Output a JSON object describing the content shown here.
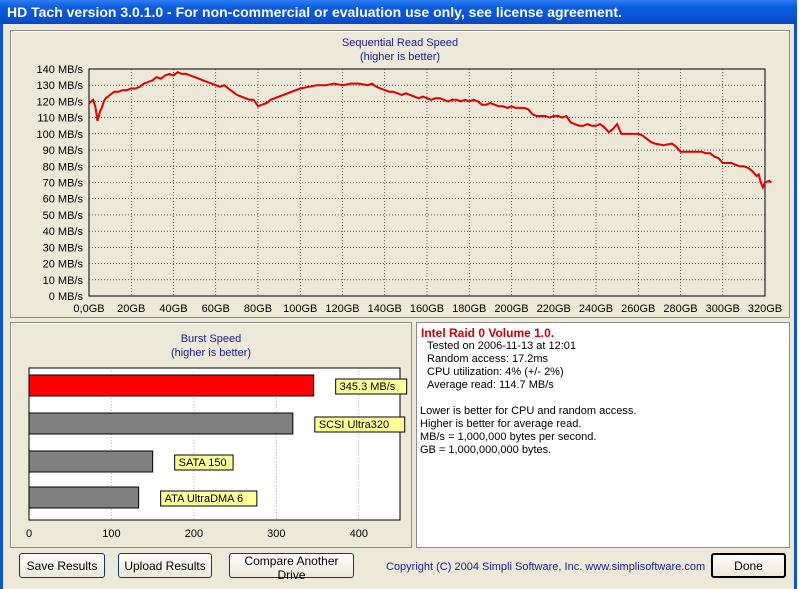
{
  "window": {
    "title": "HD Tach version 3.0.1.0  - For non-commercial or evaluation use only, see license agreement."
  },
  "chart_data": [
    {
      "type": "line",
      "title": "Sequential Read Speed",
      "subtitle": "(higher is better)",
      "x_ticks": [
        "0,0GB",
        "20GB",
        "40GB",
        "60GB",
        "80GB",
        "100GB",
        "120GB",
        "140GB",
        "160GB",
        "180GB",
        "200GB",
        "220GB",
        "240GB",
        "260GB",
        "280GB",
        "300GB",
        "320GB"
      ],
      "y_ticks": [
        "0 MB/s",
        "10 MB/s",
        "20 MB/s",
        "30 MB/s",
        "40 MB/s",
        "50 MB/s",
        "60 MB/s",
        "70 MB/s",
        "80 MB/s",
        "90 MB/s",
        "100 MB/s",
        "110 MB/s",
        "120 MB/s",
        "130 MB/s",
        "140 MB/s"
      ],
      "xlim": [
        0,
        320
      ],
      "ylim": [
        0,
        140
      ],
      "grid": true,
      "series": [
        {
          "color": "#e00000",
          "points": [
            [
              0,
              119
            ],
            [
              2,
              121
            ],
            [
              3,
              117
            ],
            [
              4,
              108
            ],
            [
              5,
              113
            ],
            [
              6,
              116
            ],
            [
              7,
              120
            ],
            [
              8,
              122
            ],
            [
              10,
              124
            ],
            [
              12,
              126
            ],
            [
              14,
              126
            ],
            [
              16,
              127
            ],
            [
              18,
              127
            ],
            [
              20,
              128
            ],
            [
              22,
              128
            ],
            [
              24,
              129
            ],
            [
              26,
              131
            ],
            [
              28,
              132
            ],
            [
              30,
              133
            ],
            [
              32,
              135
            ],
            [
              34,
              134
            ],
            [
              36,
              136
            ],
            [
              38,
              137
            ],
            [
              40,
              136
            ],
            [
              42,
              138
            ],
            [
              44,
              137
            ],
            [
              46,
              137
            ],
            [
              48,
              136
            ],
            [
              50,
              135
            ],
            [
              52,
              134
            ],
            [
              54,
              133
            ],
            [
              56,
              132
            ],
            [
              58,
              131
            ],
            [
              60,
              130
            ],
            [
              62,
              129
            ],
            [
              64,
              130
            ],
            [
              66,
              128
            ],
            [
              68,
              126
            ],
            [
              70,
              124
            ],
            [
              72,
              123
            ],
            [
              74,
              122
            ],
            [
              76,
              121
            ],
            [
              78,
              121
            ],
            [
              80,
              117
            ],
            [
              82,
              118
            ],
            [
              84,
              119
            ],
            [
              86,
              121
            ],
            [
              88,
              122
            ],
            [
              90,
              123
            ],
            [
              92,
              124
            ],
            [
              94,
              125
            ],
            [
              96,
              126
            ],
            [
              98,
              127
            ],
            [
              100,
              128
            ],
            [
              104,
              129
            ],
            [
              108,
              130
            ],
            [
              112,
              130
            ],
            [
              116,
              131
            ],
            [
              120,
              130
            ],
            [
              124,
              131
            ],
            [
              128,
              131
            ],
            [
              132,
              130
            ],
            [
              134,
              131
            ],
            [
              136,
              129
            ],
            [
              138,
              128
            ],
            [
              140,
              127
            ],
            [
              142,
              126
            ],
            [
              144,
              126
            ],
            [
              146,
              125
            ],
            [
              148,
              124
            ],
            [
              150,
              125
            ],
            [
              152,
              124
            ],
            [
              154,
              123
            ],
            [
              156,
              122
            ],
            [
              158,
              123
            ],
            [
              160,
              122
            ],
            [
              162,
              121
            ],
            [
              164,
              122
            ],
            [
              166,
              122
            ],
            [
              168,
              121
            ],
            [
              170,
              120
            ],
            [
              172,
              121
            ],
            [
              174,
              121
            ],
            [
              176,
              120
            ],
            [
              178,
              121
            ],
            [
              180,
              120
            ],
            [
              182,
              121
            ],
            [
              184,
              120
            ],
            [
              186,
              118
            ],
            [
              188,
              118
            ],
            [
              190,
              119
            ],
            [
              192,
              118
            ],
            [
              194,
              117
            ],
            [
              196,
              117
            ],
            [
              198,
              116
            ],
            [
              200,
              117
            ],
            [
              202,
              116
            ],
            [
              204,
              116
            ],
            [
              206,
              116
            ],
            [
              208,
              115
            ],
            [
              210,
              112
            ],
            [
              212,
              111
            ],
            [
              214,
              111
            ],
            [
              216,
              111
            ],
            [
              218,
              110
            ],
            [
              220,
              111
            ],
            [
              222,
              111
            ],
            [
              224,
              110
            ],
            [
              226,
              111
            ],
            [
              228,
              107
            ],
            [
              230,
              106
            ],
            [
              232,
              105
            ],
            [
              234,
              105
            ],
            [
              236,
              106
            ],
            [
              238,
              105
            ],
            [
              240,
              105
            ],
            [
              242,
              106
            ],
            [
              244,
              104
            ],
            [
              246,
              101
            ],
            [
              248,
              103
            ],
            [
              250,
              106
            ],
            [
              251,
              103
            ],
            [
              252,
              100
            ],
            [
              256,
              100
            ],
            [
              260,
              100
            ],
            [
              262,
              99
            ],
            [
              264,
              97
            ],
            [
              266,
              95
            ],
            [
              268,
              94
            ],
            [
              272,
              93
            ],
            [
              276,
              94
            ],
            [
              278,
              92
            ],
            [
              280,
              89
            ],
            [
              284,
              89
            ],
            [
              290,
              89
            ],
            [
              292,
              88
            ],
            [
              294,
              88
            ],
            [
              296,
              86
            ],
            [
              298,
              85
            ],
            [
              300,
              82
            ],
            [
              304,
              82
            ],
            [
              306,
              81
            ],
            [
              308,
              80
            ],
            [
              310,
              80
            ],
            [
              312,
              79
            ],
            [
              314,
              77
            ],
            [
              316,
              74
            ],
            [
              317,
              75
            ],
            [
              318,
              70
            ],
            [
              319,
              67
            ],
            [
              320,
              70
            ],
            [
              322,
              71
            ],
            [
              323,
              70
            ]
          ]
        }
      ]
    },
    {
      "type": "bar",
      "orientation": "horizontal",
      "title": "Burst Speed",
      "subtitle": "(higher is better)",
      "x_ticks": [
        "0",
        "100",
        "200",
        "300",
        "400"
      ],
      "xlim": [
        0,
        450
      ],
      "grid": true,
      "bars": [
        {
          "label": "345.3 MB/s",
          "value": 345.3,
          "color": "#ff0000"
        },
        {
          "label": "SCSI Ultra320",
          "value": 320,
          "color": "#808080"
        },
        {
          "label": "SATA 150",
          "value": 150,
          "color": "#808080"
        },
        {
          "label": "ATA UltraDMA 6",
          "value": 133,
          "color": "#808080"
        }
      ]
    }
  ],
  "info": {
    "title": "Intel Raid 0 Volume 1.0.",
    "tested": "Tested on 2006-11-13 at 12:01",
    "random_access": "Random access: 17.2ms",
    "cpu": "CPU utilization: 4% (+/- 2%)",
    "avg_read": "Average read: 114.7 MB/s",
    "note1": "Lower is better for CPU and random access.",
    "note2": "Higher is better for average read.",
    "note3": "MB/s = 1,000,000 bytes per second.",
    "note4": "GB = 1,000,000,000 bytes."
  },
  "buttons": {
    "save": "Save Results",
    "upload": "Upload Results",
    "compare": "Compare Another Drive",
    "done": "Done"
  },
  "copyright": "Copyright (C) 2004 Simpli Software, Inc. www.simplisoftware.com"
}
